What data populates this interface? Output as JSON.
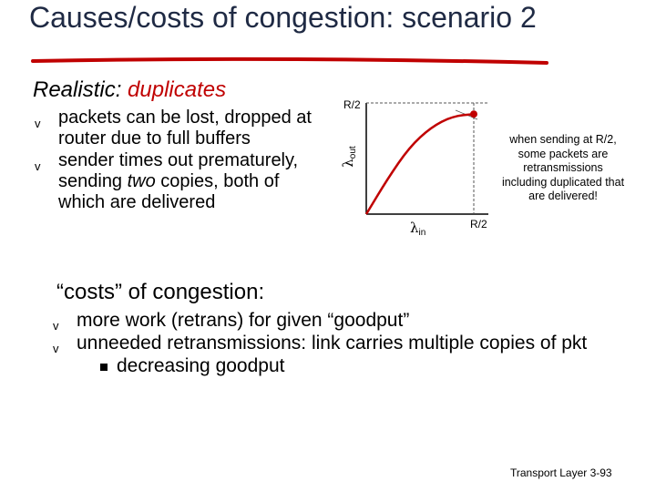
{
  "slide": {
    "title": "Causes/costs of congestion: scenario 2",
    "subtitle_plain": "Realistic: ",
    "subtitle_highlight": "duplicates",
    "bullets": [
      {
        "text_before": "packets can be lost, dropped at router due  to full buffers",
        "text_italic": "",
        "text_after": ""
      },
      {
        "text_before": "sender times out prematurely, sending ",
        "text_italic": "two",
        "text_after": " copies, both of which are delivered"
      }
    ],
    "costs_heading": "“costs” of congestion:",
    "costs": [
      "more work (retrans) for given “goodput”",
      "unneeded retransmissions: link carries multiple copies of pkt"
    ],
    "costs_sub": "decreasing goodput",
    "bullet_glyph": "v",
    "note": "when sending at R/2, some packets are retransmissions including duplicated that are delivered!",
    "footer": "Transport Layer 3-93"
  },
  "chart_data": {
    "type": "line",
    "ylabel_main": "λ",
    "ylabel_sub": "out",
    "xlabel_main": "λ",
    "xlabel_sub": "in",
    "y_tick": "R/2",
    "x_tick": "R/2",
    "xlim": [
      0,
      0.5
    ],
    "ylim": [
      0,
      0.5
    ],
    "series": [
      {
        "x": [
          0,
          0.1,
          0.2,
          0.3,
          0.4,
          0.5
        ],
        "y": [
          0,
          0.16,
          0.3,
          0.39,
          0.44,
          0.45
        ]
      }
    ],
    "colors": {
      "curve": "#c00000",
      "axis": "#000000",
      "guide": "#555555",
      "title_rule": "#c00000"
    }
  }
}
